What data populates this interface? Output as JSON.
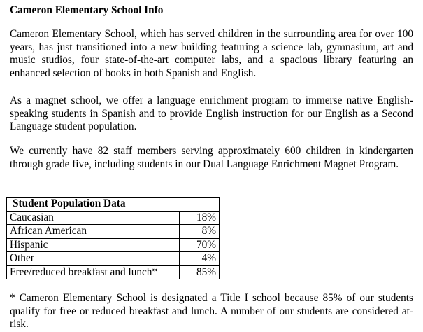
{
  "title": "Cameron Elementary School Info",
  "paragraphs": [
    "Cameron Elementary School, which has served children in the surrounding area for over 100 years, has just transitioned into a new building featuring a science lab, gymnasium, art and music studios, four state-of-the-art computer labs, and a spacious library featuring an enhanced selection of books in both Spanish and English.",
    "As a magnet school, we offer a language enrichment program to immerse native English-speaking students in Spanish and to provide English instruction for our English as a Second Language student population.",
    "We currently have 82 staff members serving approximately 600 children in kindergarten through grade five, including students in our Dual Language Enrichment Magnet Program."
  ],
  "table": {
    "header": "Student Population Data",
    "rows": [
      {
        "label": "Caucasian",
        "value": "18%"
      },
      {
        "label": "African American",
        "value": "8%"
      },
      {
        "label": "Hispanic",
        "value": "70%"
      },
      {
        "label": "Other",
        "value": "4%"
      },
      {
        "label": "Free/reduced breakfast and lunch*",
        "value": "85%"
      }
    ]
  },
  "footnote": "* Cameron Elementary School is designated a Title I school because 85% of our students qualify for free or reduced breakfast and lunch. A number of our students are considered at-risk."
}
